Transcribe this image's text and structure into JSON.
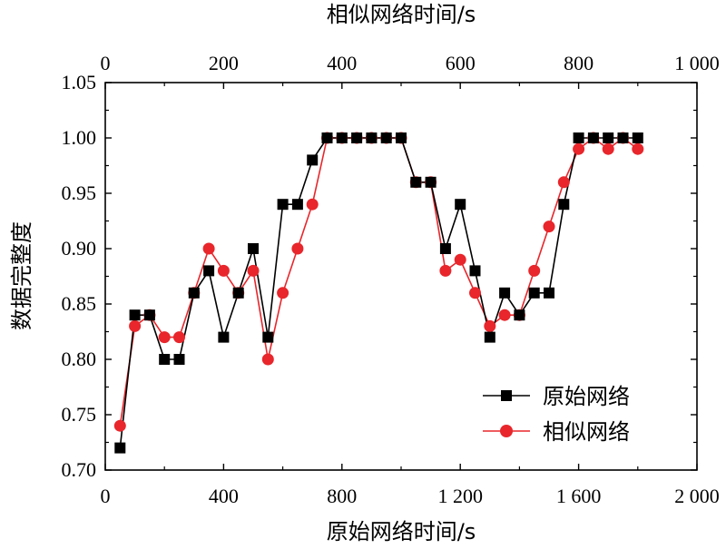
{
  "chart_data": {
    "type": "line",
    "title": "",
    "xlabel_bottom": "原始网络时间/s",
    "xlabel_top": "相似网络时间/s",
    "ylabel": "数据完整度",
    "xlim_bottom": [
      0,
      2000
    ],
    "xlim_top": [
      0,
      1000
    ],
    "ylim": [
      0.7,
      1.05
    ],
    "xticks_bottom": [
      0,
      400,
      800,
      1200,
      1600,
      2000
    ],
    "xtick_labels_bottom": [
      "0",
      "400",
      "800",
      "1 200",
      "1 600",
      "2 000"
    ],
    "xticks_top": [
      0,
      200,
      400,
      600,
      800,
      1000
    ],
    "xtick_labels_top": [
      "0",
      "200",
      "400",
      "600",
      "800",
      "1 000"
    ],
    "yticks": [
      0.7,
      0.75,
      0.8,
      0.85,
      0.9,
      0.95,
      1.0,
      1.05
    ],
    "ytick_labels": [
      "0.70",
      "0.75",
      "0.80",
      "0.85",
      "0.90",
      "0.95",
      "1.00",
      "1.05"
    ],
    "legend_position": "bottom-right",
    "x": [
      50,
      100,
      150,
      200,
      250,
      300,
      350,
      400,
      450,
      500,
      550,
      600,
      650,
      700,
      750,
      800,
      850,
      900,
      950,
      1000,
      1050,
      1100,
      1150,
      1200,
      1250,
      1300,
      1350,
      1400,
      1450,
      1500,
      1550,
      1600,
      1650,
      1700,
      1750,
      1800
    ],
    "series": [
      {
        "name": "原始网络",
        "color": "#000000",
        "marker": "square",
        "values": [
          0.72,
          0.84,
          0.84,
          0.8,
          0.8,
          0.86,
          0.88,
          0.82,
          0.86,
          0.9,
          0.82,
          0.94,
          0.94,
          0.98,
          1.0,
          1.0,
          1.0,
          1.0,
          1.0,
          1.0,
          0.96,
          0.96,
          0.9,
          0.94,
          0.88,
          0.82,
          0.86,
          0.84,
          0.86,
          0.86,
          0.94,
          1.0,
          1.0,
          1.0,
          1.0,
          1.0
        ]
      },
      {
        "name": "相似网络",
        "color": "#e8262b",
        "marker": "circle",
        "values": [
          0.74,
          0.83,
          0.84,
          0.82,
          0.82,
          0.86,
          0.9,
          0.88,
          0.86,
          0.88,
          0.8,
          0.86,
          0.9,
          0.94,
          1.0,
          1.0,
          1.0,
          1.0,
          1.0,
          1.0,
          0.96,
          0.96,
          0.88,
          0.89,
          0.86,
          0.83,
          0.84,
          0.84,
          0.88,
          0.92,
          0.96,
          0.99,
          1.0,
          0.99,
          1.0,
          0.99
        ]
      }
    ]
  }
}
